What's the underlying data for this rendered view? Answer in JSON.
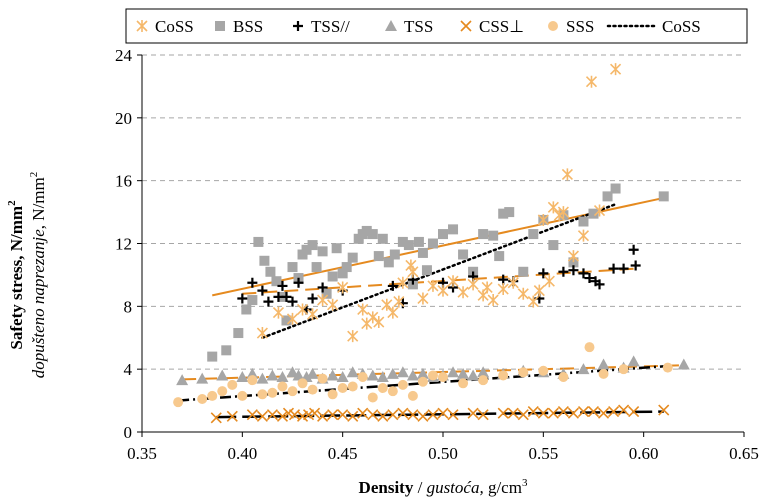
{
  "chart_data": {
    "type": "scatter",
    "xlabel": {
      "bold": "Density",
      "sep": " / ",
      "italic": "gustoća,",
      "unit": " g/cm",
      "sup": "3"
    },
    "ylabel": {
      "line1": {
        "text": "Safety stress, N/mm",
        "sup": "2"
      },
      "line2": {
        "italic": "dopušteno naprezanje",
        "unit": ", N/mm",
        "sup": "2"
      }
    },
    "xlim": [
      0.35,
      0.65
    ],
    "ylim": [
      0,
      24
    ],
    "xticks": [
      "0.35",
      "0.40",
      "0.45",
      "0.50",
      "0.55",
      "0.60",
      "0.65"
    ],
    "yticks": [
      "0",
      "4",
      "8",
      "12",
      "16",
      "20",
      "24"
    ],
    "grid": "horizontal-dashed",
    "legend_position": "top",
    "colors": {
      "orange": "#E58A1F",
      "light_orange": "#F5B86A",
      "peach": "#F7C98E",
      "gray": "#A6A6A6",
      "black": "#000000"
    },
    "legend": [
      {
        "label": "CoSS",
        "marker": "asterisk",
        "color": "#F5B86A"
      },
      {
        "label": "BSS",
        "marker": "square",
        "color": "#A6A6A6"
      },
      {
        "label": "TSS//",
        "marker": "plus",
        "color": "#000000"
      },
      {
        "label": "TSS",
        "marker": "triangle",
        "color": "#A6A6A6"
      },
      {
        "label": "CSS⊥",
        "marker": "x",
        "color": "#E58A1F"
      },
      {
        "label": "SSS",
        "marker": "circle",
        "color": "#F7C98E"
      },
      {
        "label": "CoSS",
        "marker": "dotted-line",
        "color": "#000000"
      }
    ],
    "series": [
      {
        "name": "CoSS",
        "marker": "asterisk",
        "color": "#F5B86A",
        "x": [
          0.41,
          0.418,
          0.425,
          0.43,
          0.435,
          0.44,
          0.445,
          0.45,
          0.455,
          0.46,
          0.462,
          0.465,
          0.468,
          0.472,
          0.475,
          0.478,
          0.48,
          0.484,
          0.485,
          0.49,
          0.495,
          0.5,
          0.505,
          0.51,
          0.515,
          0.52,
          0.522,
          0.525,
          0.53,
          0.535,
          0.54,
          0.545,
          0.548,
          0.55,
          0.553,
          0.555,
          0.558,
          0.56,
          0.562,
          0.565,
          0.57,
          0.574,
          0.578,
          0.586
        ],
        "y": [
          6.3,
          7.6,
          7.2,
          7.8,
          7.5,
          8.4,
          8.1,
          9.2,
          6.1,
          7.8,
          6.9,
          7.3,
          7.0,
          8.1,
          7.6,
          8.3,
          9.5,
          10.6,
          10.2,
          8.5,
          9.3,
          9.0,
          9.6,
          8.9,
          9.4,
          8.7,
          9.2,
          8.4,
          9.1,
          9.5,
          8.8,
          8.3,
          9.0,
          13.5,
          9.6,
          14.3,
          13.8,
          14.0,
          16.4,
          11.2,
          12.5,
          22.3,
          14.1,
          23.1
        ]
      },
      {
        "name": "BSS",
        "marker": "square",
        "color": "#A6A6A6",
        "x": [
          0.385,
          0.392,
          0.398,
          0.402,
          0.405,
          0.408,
          0.411,
          0.414,
          0.417,
          0.42,
          0.422,
          0.425,
          0.428,
          0.43,
          0.432,
          0.435,
          0.437,
          0.44,
          0.442,
          0.445,
          0.447,
          0.45,
          0.452,
          0.455,
          0.458,
          0.46,
          0.462,
          0.465,
          0.468,
          0.47,
          0.473,
          0.476,
          0.48,
          0.483,
          0.485,
          0.488,
          0.49,
          0.492,
          0.495,
          0.5,
          0.505,
          0.51,
          0.515,
          0.52,
          0.525,
          0.528,
          0.53,
          0.533,
          0.54,
          0.545,
          0.55,
          0.555,
          0.56,
          0.565,
          0.57,
          0.575,
          0.582,
          0.586,
          0.61
        ],
        "y": [
          4.8,
          5.2,
          6.3,
          7.8,
          8.4,
          12.1,
          10.9,
          10.2,
          9.6,
          8.6,
          7.1,
          10.5,
          9.8,
          11.3,
          11.6,
          11.9,
          10.5,
          11.5,
          8.8,
          9.9,
          11.7,
          10.1,
          10.5,
          11.1,
          12.3,
          12.6,
          12.8,
          12.6,
          11.2,
          12.3,
          10.8,
          11.3,
          12.1,
          11.9,
          9.4,
          12.1,
          11.4,
          10.3,
          12.0,
          12.6,
          12.9,
          11.3,
          10.2,
          12.6,
          12.5,
          11.2,
          13.9,
          14.0,
          10.2,
          12.6,
          13.5,
          11.9,
          13.8,
          10.8,
          13.4,
          13.9,
          15.0,
          15.5,
          15.0
        ]
      },
      {
        "name": "TSS//",
        "marker": "plus",
        "color": "#000000",
        "x": [
          0.4,
          0.405,
          0.41,
          0.413,
          0.418,
          0.42,
          0.422,
          0.425,
          0.428,
          0.432,
          0.435,
          0.44,
          0.45,
          0.475,
          0.48,
          0.485,
          0.5,
          0.505,
          0.515,
          0.53,
          0.535,
          0.548,
          0.55,
          0.56,
          0.565,
          0.57,
          0.573,
          0.576,
          0.578,
          0.585,
          0.59,
          0.595,
          0.596
        ],
        "y": [
          8.5,
          9.5,
          9.0,
          8.3,
          8.6,
          9.3,
          8.6,
          8.3,
          9.5,
          7.8,
          8.5,
          9.2,
          9.0,
          9.3,
          8.2,
          9.7,
          9.5,
          9.2,
          9.9,
          9.7,
          9.6,
          8.5,
          10.1,
          10.2,
          10.3,
          10.1,
          9.8,
          9.6,
          9.4,
          10.4,
          10.4,
          11.6,
          10.6
        ]
      },
      {
        "name": "TSS",
        "marker": "triangle",
        "color": "#A6A6A6",
        "x": [
          0.37,
          0.38,
          0.39,
          0.4,
          0.405,
          0.41,
          0.415,
          0.42,
          0.425,
          0.428,
          0.432,
          0.435,
          0.44,
          0.445,
          0.45,
          0.455,
          0.46,
          0.465,
          0.47,
          0.475,
          0.48,
          0.485,
          0.49,
          0.495,
          0.5,
          0.505,
          0.51,
          0.515,
          0.52,
          0.53,
          0.54,
          0.55,
          0.56,
          0.57,
          0.58,
          0.59,
          0.595,
          0.62
        ],
        "y": [
          3.3,
          3.4,
          3.6,
          3.5,
          3.7,
          3.4,
          3.6,
          3.5,
          3.8,
          3.6,
          3.5,
          3.7,
          3.4,
          3.6,
          3.5,
          3.8,
          3.7,
          3.6,
          3.5,
          3.7,
          3.8,
          3.6,
          3.7,
          3.5,
          3.6,
          3.8,
          3.7,
          3.6,
          3.8,
          3.7,
          3.9,
          3.8,
          3.7,
          4.0,
          4.3,
          4.1,
          4.5,
          4.3
        ]
      },
      {
        "name": "CSS⊥",
        "marker": "x",
        "color": "#E58A1F",
        "x": [
          0.387,
          0.395,
          0.405,
          0.41,
          0.415,
          0.42,
          0.423,
          0.426,
          0.43,
          0.433,
          0.436,
          0.44,
          0.445,
          0.45,
          0.455,
          0.46,
          0.465,
          0.47,
          0.475,
          0.48,
          0.485,
          0.49,
          0.495,
          0.5,
          0.505,
          0.515,
          0.52,
          0.53,
          0.535,
          0.54,
          0.545,
          0.55,
          0.555,
          0.56,
          0.565,
          0.57,
          0.575,
          0.58,
          0.585,
          0.59,
          0.595,
          0.61
        ],
        "y": [
          0.9,
          1.0,
          1.1,
          1.0,
          1.1,
          1.0,
          1.2,
          1.1,
          1.0,
          1.1,
          1.2,
          1.0,
          1.1,
          1.1,
          1.0,
          1.2,
          1.1,
          1.0,
          1.1,
          1.2,
          1.1,
          1.0,
          1.1,
          1.2,
          1.1,
          1.2,
          1.1,
          1.2,
          1.2,
          1.1,
          1.3,
          1.2,
          1.2,
          1.3,
          1.2,
          1.3,
          1.3,
          1.2,
          1.3,
          1.4,
          1.3,
          1.4
        ]
      },
      {
        "name": "SSS",
        "marker": "circle",
        "color": "#F7C98E",
        "x": [
          0.368,
          0.38,
          0.385,
          0.39,
          0.395,
          0.4,
          0.405,
          0.41,
          0.415,
          0.42,
          0.425,
          0.43,
          0.435,
          0.44,
          0.445,
          0.45,
          0.455,
          0.46,
          0.465,
          0.47,
          0.475,
          0.48,
          0.485,
          0.49,
          0.495,
          0.5,
          0.51,
          0.52,
          0.53,
          0.54,
          0.55,
          0.56,
          0.573,
          0.58,
          0.59,
          0.612
        ],
        "y": [
          1.9,
          2.1,
          2.3,
          2.6,
          3.0,
          2.3,
          3.3,
          2.4,
          2.5,
          2.9,
          2.6,
          3.1,
          2.7,
          3.4,
          2.4,
          2.8,
          2.9,
          3.5,
          2.2,
          2.8,
          2.6,
          3.0,
          2.3,
          3.2,
          3.6,
          3.5,
          3.1,
          3.3,
          3.6,
          3.8,
          3.9,
          3.5,
          5.4,
          3.7,
          4.0,
          4.1
        ]
      }
    ],
    "trendlines": [
      {
        "name": "BSS",
        "style": "solid",
        "color": "#E58A1F",
        "width": 2,
        "x": [
          0.385,
          0.61
        ],
        "y": [
          8.7,
          14.9
        ]
      },
      {
        "name": "CoSS",
        "style": "dotted",
        "color": "#000000",
        "width": 2.5,
        "x": [
          0.41,
          0.586
        ],
        "y": [
          6.0,
          14.5
        ]
      },
      {
        "name": "TSS//",
        "style": "dashed",
        "color": "#E58A1F",
        "width": 2,
        "x": [
          0.4,
          0.596
        ],
        "y": [
          8.8,
          10.4
        ]
      },
      {
        "name": "TSS",
        "style": "dashed",
        "color": "#E58A1F",
        "width": 2,
        "x": [
          0.37,
          0.62
        ],
        "y": [
          3.35,
          4.25
        ]
      },
      {
        "name": "SSS",
        "style": "dashdot",
        "color": "#000000",
        "width": 2.5,
        "x": [
          0.368,
          0.612
        ],
        "y": [
          2.0,
          4.2
        ]
      },
      {
        "name": "CSS⊥",
        "style": "longdash",
        "color": "#000000",
        "width": 2.5,
        "x": [
          0.387,
          0.61
        ],
        "y": [
          0.95,
          1.3
        ]
      }
    ]
  }
}
